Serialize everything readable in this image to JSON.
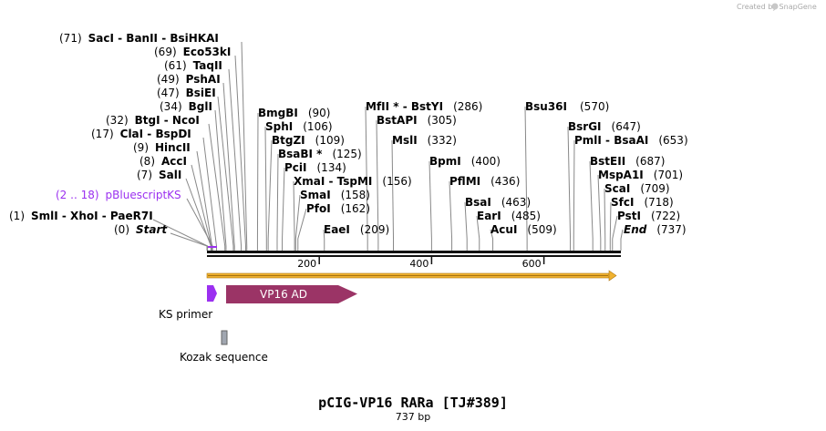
{
  "credit": "Created by SnapGene",
  "title": "pCIG-VP16 RARa [TJ#389]",
  "length_label": "737 bp",
  "sequence_length": 737,
  "ticks": [
    {
      "pos": 200,
      "label": "200"
    },
    {
      "pos": 400,
      "label": "400"
    },
    {
      "pos": 600,
      "label": "600"
    }
  ],
  "features": {
    "vp16": {
      "label": "VP16 AD",
      "color": "#9b3466"
    },
    "ks_primer": {
      "label": "KS primer",
      "color": "#9b30f0"
    },
    "kozak": {
      "label": "Kozak sequence",
      "color": "#a0a6b0"
    },
    "pbluescript": {
      "range": "(2 .. 18)",
      "label": "pBluescriptKS",
      "color": "#9b30f0"
    }
  },
  "left_sites": [
    {
      "num": "(71)",
      "name": "SacI",
      "extra": " - BanII  - BsiHKAI",
      "pos": 71
    },
    {
      "num": "(69)",
      "name": "Eco53kI",
      "pos": 69
    },
    {
      "num": "(61)",
      "name": "TaqII",
      "pos": 61
    },
    {
      "num": "(49)",
      "name": "PshAI",
      "pos": 49
    },
    {
      "num": "(47)",
      "name": "BsiEI",
      "pos": 47
    },
    {
      "num": "(34)",
      "name": "BglI",
      "pos": 34
    },
    {
      "num": "(32)",
      "name": "BtgI  - NcoI",
      "pos": 32
    },
    {
      "num": "(17)",
      "name": "ClaI  - BspDI",
      "pos": 17
    },
    {
      "num": "(9)",
      "name": "HincII",
      "pos": 9
    },
    {
      "num": "(8)",
      "name": "AccI",
      "pos": 8
    },
    {
      "num": "(7)",
      "name": "SalI",
      "pos": 7
    },
    {
      "num": "(1)",
      "name": "SmlI  - XhoI  - PaeR7I",
      "pos": 1
    },
    {
      "num": "(0)",
      "name": "Start",
      "pos": 0,
      "italic": true
    }
  ],
  "mid_sites": [
    {
      "name": "BmgBI",
      "num": "(90)",
      "pos": 90
    },
    {
      "name": "SphI",
      "num": "(106)",
      "pos": 106
    },
    {
      "name": "BtgZI",
      "num": "(109)",
      "pos": 109
    },
    {
      "name": "BsaBI *",
      "num": "(125)",
      "pos": 125
    },
    {
      "name": "PciI",
      "num": "(134)",
      "pos": 134
    },
    {
      "name": "XmaI  - TspMI",
      "num": "(156)",
      "pos": 156
    },
    {
      "name": "SmaI",
      "num": "(158)",
      "pos": 158
    },
    {
      "name": "PfoI",
      "num": "(162)",
      "pos": 162
    },
    {
      "name": "EaeI",
      "num": "(209)",
      "pos": 209
    },
    {
      "name": "MfII *  - BstYI",
      "num": "(286)",
      "pos": 286
    },
    {
      "name": "BstAPI",
      "num": "(305)",
      "pos": 305
    },
    {
      "name": "MslI",
      "num": "(332)",
      "pos": 332
    },
    {
      "name": "BpmI",
      "num": "(400)",
      "pos": 400
    },
    {
      "name": "PflMI",
      "num": "(436)",
      "pos": 436
    },
    {
      "name": "BsaI",
      "num": "(463)",
      "pos": 463
    },
    {
      "name": "EarI",
      "num": "(485)",
      "pos": 485
    },
    {
      "name": "AcuI",
      "num": "(509)",
      "pos": 509
    },
    {
      "name": "Bsu36I",
      "num": "(570)",
      "pos": 570
    }
  ],
  "right_sites": [
    {
      "name": "BsrGI",
      "num": "(647)",
      "pos": 647
    },
    {
      "name": "PmlI  - BsaAI",
      "num": "(653)",
      "pos": 653
    },
    {
      "name": "BstEII",
      "num": "(687)",
      "pos": 687
    },
    {
      "name": "MspA1I",
      "num": "(701)",
      "pos": 701
    },
    {
      "name": "ScaI",
      "num": "(709)",
      "pos": 709
    },
    {
      "name": "SfcI",
      "num": "(718)",
      "pos": 718
    },
    {
      "name": "PstI",
      "num": "(722)",
      "pos": 722
    },
    {
      "name": "End",
      "num": "(737)",
      "pos": 737,
      "italic": true
    }
  ]
}
